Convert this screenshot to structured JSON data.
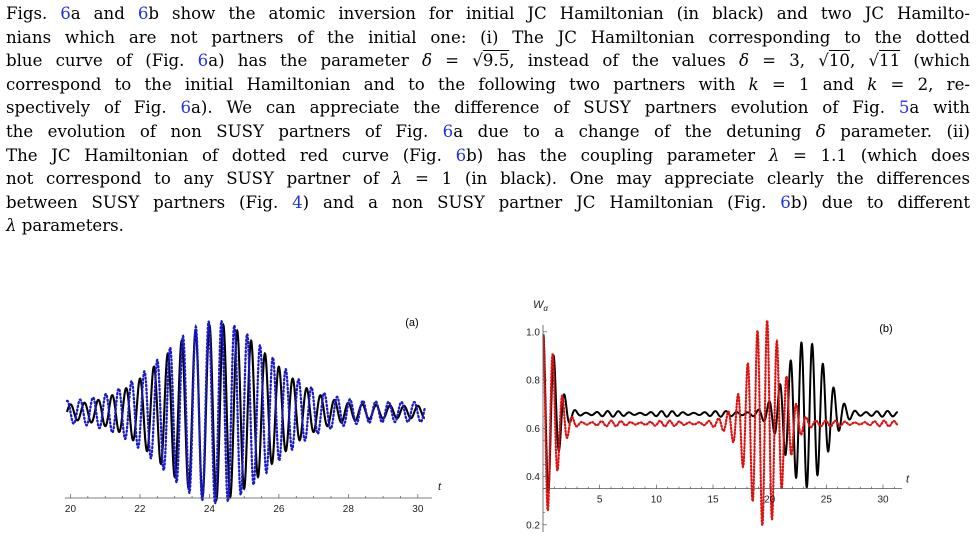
{
  "paragraph": {
    "lines": [
      [
        {
          "t": "Figs. "
        },
        {
          "t": "6",
          "ref": 1
        },
        {
          "t": "a and "
        },
        {
          "t": "6",
          "ref": 1
        },
        {
          "t": "b show the atomic inversion for initial JC Hamiltonian (in black) and two JC Hamilto-"
        }
      ],
      [
        {
          "t": "nians which are not partners of the initial one: (i) The JC Hamiltonian corresponding to the dotted"
        }
      ],
      [
        {
          "t": "blue curve of (Fig. "
        },
        {
          "t": "6",
          "ref": 1
        },
        {
          "t": "a) has the parameter "
        },
        {
          "t": "δ",
          "i": 1
        },
        {
          "t": " = √"
        },
        {
          "t": "9.5",
          "sq": 1
        },
        {
          "t": ", instead of the values "
        },
        {
          "t": "δ",
          "i": 1
        },
        {
          "t": " = 3, √"
        },
        {
          "t": "10",
          "sq": 1
        },
        {
          "t": ", √"
        },
        {
          "t": "11",
          "sq": 1
        },
        {
          "t": " (which"
        }
      ],
      [
        {
          "t": "correspond to the initial Hamiltonian and to the following two partners with "
        },
        {
          "t": "k",
          "i": 1
        },
        {
          "t": " = 1 and "
        },
        {
          "t": "k",
          "i": 1
        },
        {
          "t": " = 2, re-"
        }
      ],
      [
        {
          "t": "spectively of Fig. "
        },
        {
          "t": "6",
          "ref": 1
        },
        {
          "t": "a). We can appreciate the difference of SUSY partners evolution of Fig. "
        },
        {
          "t": "5",
          "ref": 1
        },
        {
          "t": "a with"
        }
      ],
      [
        {
          "t": "the evolution of non SUSY partners of Fig. "
        },
        {
          "t": "6",
          "ref": 1
        },
        {
          "t": "a due to a change of the detuning "
        },
        {
          "t": "δ",
          "i": 1
        },
        {
          "t": " parameter. (ii)"
        }
      ],
      [
        {
          "t": "The JC Hamiltonian of dotted red curve (Fig. "
        },
        {
          "t": "6",
          "ref": 1
        },
        {
          "t": "b) has the coupling parameter "
        },
        {
          "t": "λ",
          "i": 1
        },
        {
          "t": " = 1.1 (which does"
        }
      ],
      [
        {
          "t": "not correspond to any SUSY partner of "
        },
        {
          "t": "λ",
          "i": 1
        },
        {
          "t": " = 1 (in black). One may appreciate clearly the differences"
        }
      ],
      [
        {
          "t": "between SUSY partners (Fig. "
        },
        {
          "t": "4",
          "ref": 1
        },
        {
          "t": ") and a non SUSY partner JC Hamiltonian (Fig. "
        },
        {
          "t": "6",
          "ref": 1
        },
        {
          "t": "b) due to different"
        }
      ],
      [
        {
          "t": "λ",
          "i": 1
        },
        {
          "t": " parameters."
        }
      ]
    ]
  },
  "chart_data": [
    {
      "type": "line",
      "panel_label": "(a)",
      "xlabel": "t",
      "ylabel": "",
      "xlim": [
        19.9,
        30.35
      ],
      "xticks": [
        20,
        22,
        24,
        26,
        28,
        30
      ],
      "xtick_labels": [
        "20",
        "22",
        "24",
        "26",
        "28",
        "30"
      ],
      "yticks": [],
      "grid": false,
      "series": [
        {
          "color": "#000000",
          "style": "solid",
          "envelope_center": 0.62,
          "envelope_peak": 0.33,
          "envelope_peak_t": 24.2,
          "envelope_width": 2.1,
          "envelope_floor": 0.025,
          "period": 0.4,
          "phase": 0.0,
          "t_start": 19.9,
          "t_end": 30.2
        },
        {
          "color": "#1a1acc",
          "style": "dotted",
          "envelope_center": 0.62,
          "envelope_peak": 0.33,
          "envelope_peak_t": 24.2,
          "envelope_width": 2.1,
          "envelope_floor": 0.04,
          "period": 0.37,
          "phase": 1.57,
          "t_start": 19.9,
          "t_end": 30.2
        }
      ]
    },
    {
      "type": "line",
      "panel_label": "(b)",
      "xlabel": "t",
      "ylabel": "Wα",
      "xlim": [
        0,
        31.5
      ],
      "ylim": [
        0.17,
        1.02
      ],
      "xticks": [
        5,
        10,
        15,
        20,
        25,
        30
      ],
      "xtick_labels": [
        "5",
        "10",
        "15",
        "20",
        "25",
        "30"
      ],
      "yticks": [
        0.2,
        0.4,
        0.6,
        0.8,
        1.0
      ],
      "ytick_labels": [
        "0.2",
        "0.4",
        "0.6",
        "0.8",
        "1.0"
      ],
      "x_axis_at_y": 0.35,
      "grid": false,
      "series": [
        {
          "color": "#000000",
          "style": "solid",
          "plateau": 0.66,
          "period": 0.95,
          "collapse_amp": 0.34,
          "collapse_time": 1.5,
          "revival_peak_t": 23.2,
          "revival_amp": 0.3,
          "revival_width": 2.3
        },
        {
          "color": "#dd1111",
          "style": "dotted",
          "plateau": 0.62,
          "period": 0.86,
          "collapse_amp": 0.38,
          "collapse_time": 1.5,
          "revival_peak_t": 19.6,
          "revival_amp": 0.42,
          "revival_width": 2.1
        }
      ]
    }
  ]
}
